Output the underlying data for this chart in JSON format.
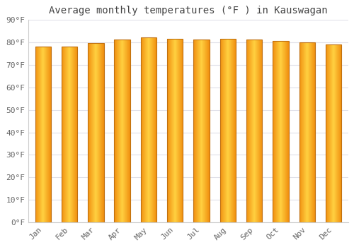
{
  "title": "Average monthly temperatures (°F ) in Kauswagan",
  "months": [
    "Jan",
    "Feb",
    "Mar",
    "Apr",
    "May",
    "Jun",
    "Jul",
    "Aug",
    "Sep",
    "Oct",
    "Nov",
    "Dec"
  ],
  "values": [
    78.0,
    78.0,
    79.5,
    81.0,
    82.0,
    81.5,
    81.0,
    81.5,
    81.0,
    80.5,
    80.0,
    79.0
  ],
  "ylim": [
    0,
    90
  ],
  "yticks": [
    0,
    10,
    20,
    30,
    40,
    50,
    60,
    70,
    80,
    90
  ],
  "ytick_labels": [
    "0°F",
    "10°F",
    "20°F",
    "30°F",
    "40°F",
    "50°F",
    "60°F",
    "70°F",
    "80°F",
    "90°F"
  ],
  "bar_color_center": "#FFD040",
  "bar_color_edge": "#F09010",
  "bar_border_color": "#C07010",
  "background_color": "#FFFFFF",
  "plot_bg_color": "#FFFFFF",
  "grid_color": "#E0E0E8",
  "title_fontsize": 10,
  "tick_fontsize": 8,
  "title_color": "#444444",
  "tick_color": "#666666",
  "bar_width": 0.6
}
